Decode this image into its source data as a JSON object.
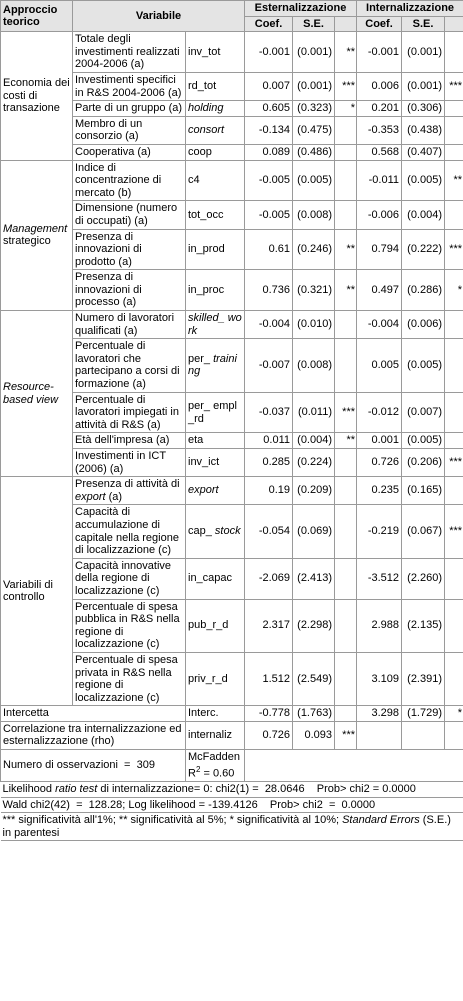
{
  "header": {
    "approach": "Approccio teorico",
    "variable": "Variabile",
    "ext": "Esternalizzazione",
    "int": "Internalizzazione",
    "coef": "Coef.",
    "se": "S.E.",
    "coef2": "Coef.",
    "se2": "S.E."
  },
  "groups": [
    {
      "label": [
        "Economia dei costi di transazione"
      ],
      "rows": [
        {
          "desc": [
            "Totale degli investimenti realizzati 2004-2006 (a)"
          ],
          "var": [
            "inv_tot"
          ],
          "ext_coef": "-0.001",
          "ext_se": "(0.001)",
          "ext_sig": "**",
          "int_coef": "-0.001",
          "int_se": "(0.001)"
        },
        {
          "desc": [
            "Investimenti specifici in R&S 2004-2006 (a)"
          ],
          "var": [
            "rd_tot"
          ],
          "ext_coef": "0.007",
          "ext_se": "(0.001)",
          "ext_sig": "***",
          "int_coef": "0.006",
          "int_se": "(0.001)",
          "int_sig": "***"
        },
        {
          "desc": [
            "Parte di un gruppo (a)"
          ],
          "var": [
            {
              "text": "holding",
              "italic": true
            }
          ],
          "ext_coef": "0.605",
          "ext_se": "(0.323)",
          "ext_sig": "*",
          "int_coef": "0.201",
          "int_se": "(0.306)"
        },
        {
          "desc": [
            "Membro di un consorzio (a)"
          ],
          "var": [
            {
              "text": "consort",
              "italic": true
            }
          ],
          "ext_coef": "-0.134",
          "ext_se": "(0.475)",
          "int_coef": "-0.353",
          "int_se": "(0.438)"
        },
        {
          "desc": [
            "Cooperativa (a)"
          ],
          "var": [
            "coop"
          ],
          "ext_coef": "0.089",
          "ext_se": "(0.486)",
          "int_coef": "0.568",
          "int_se": "(0.407)"
        }
      ]
    },
    {
      "label": [
        {
          "text": "Management",
          "italic": true
        },
        " strategico"
      ],
      "rows": [
        {
          "desc": [
            "Indice di concentrazione di mercato (b)"
          ],
          "var": [
            "c4"
          ],
          "ext_coef": "-0.005",
          "ext_se": "(0.005)",
          "int_coef": "-0.011",
          "int_se": "(0.005)",
          "int_sig": "**"
        },
        {
          "desc": [
            "Dimensione (numero di occupati) (a)"
          ],
          "var": [
            "tot_occ"
          ],
          "ext_coef": "-0.005",
          "ext_se": "(0.008)",
          "int_coef": "-0.006",
          "int_se": "(0.004)"
        },
        {
          "desc": [
            "Presenza di innovazioni di prodotto (a)"
          ],
          "var": [
            "in_prod"
          ],
          "ext_coef": "0.61",
          "ext_se": "(0.246)",
          "ext_sig": "**",
          "int_coef": "0.794",
          "int_se": "(0.222)",
          "int_sig": "***"
        },
        {
          "desc": [
            "Presenza di innovazioni di processo (a)"
          ],
          "var": [
            "in_proc"
          ],
          "ext_coef": "0.736",
          "ext_se": "(0.321)",
          "ext_sig": "**",
          "int_coef": "0.497",
          "int_se": "(0.286)",
          "int_sig": "*"
        }
      ]
    },
    {
      "label": [
        {
          "text": "Resource-based view",
          "italic": true
        }
      ],
      "rows": [
        {
          "desc": [
            "Numero di lavoratori qualificati (a)"
          ],
          "var": [
            {
              "text": "skilled_ work",
              "italic": true
            }
          ],
          "ext_coef": "-0.004",
          "ext_se": "(0.010)",
          "int_coef": "-0.004",
          "int_se": "(0.006)"
        },
        {
          "desc": [
            "Percentuale di lavoratori che partecipano a corsi di formazione (a)"
          ],
          "var": [
            "per_ ",
            {
              "text": "training",
              "italic": true
            }
          ],
          "ext_coef": "-0.007",
          "ext_se": "(0.008)",
          "int_coef": "0.005",
          "int_se": "(0.005)"
        },
        {
          "desc": [
            "Percentuale di lavoratori impiegati in attività di R&S (a)"
          ],
          "var": [
            "per_ empl_rd"
          ],
          "ext_coef": "-0.037",
          "ext_se": "(0.011)",
          "ext_sig": "***",
          "int_coef": "-0.012",
          "int_se": "(0.007)"
        },
        {
          "desc": [
            "Età dell'impresa (a)"
          ],
          "var": [
            "eta"
          ],
          "ext_coef": "0.011",
          "ext_se": "(0.004)",
          "ext_sig": "**",
          "int_coef": "0.001",
          "int_se": "(0.005)"
        },
        {
          "desc": [
            "Investimenti in ICT (2006) (a)"
          ],
          "var": [
            "inv_ict"
          ],
          "ext_coef": "0.285",
          "ext_se": "(0.224)",
          "int_coef": "0.726",
          "int_se": "(0.206)",
          "int_sig": "***"
        }
      ]
    },
    {
      "label": [
        "Variabili di controllo"
      ],
      "rows": [
        {
          "desc": [
            "Presenza di attività di ",
            {
              "text": "export",
              "italic": true
            },
            " (a)"
          ],
          "var": [
            {
              "text": "export",
              "italic": true
            }
          ],
          "ext_coef": "0.19",
          "ext_se": "(0.209)",
          "int_coef": "0.235",
          "int_se": "(0.165)"
        },
        {
          "desc": [
            "Capacità di accumulazione di capitale nella regione di localizzazione (c)"
          ],
          "var": [
            "cap_ ",
            {
              "text": "stock",
              "italic": true
            }
          ],
          "ext_coef": "-0.054",
          "ext_se": "(0.069)",
          "int_coef": "-0.219",
          "int_se": "(0.067)",
          "int_sig": "***"
        },
        {
          "desc": [
            "Capacità innovative della regione di localizzazione (c)"
          ],
          "var": [
            "in_capac"
          ],
          "ext_coef": "-2.069",
          "ext_se": "(2.413)",
          "int_coef": "-3.512",
          "int_se": "(2.260)"
        },
        {
          "desc": [
            "Percentuale di spesa pubblica in R&S nella regione di localizzazione (c)"
          ],
          "var": [
            "pub_r_d"
          ],
          "ext_coef": "2.317",
          "ext_se": "(2.298)",
          "int_coef": "2.988",
          "int_se": "(2.135)"
        },
        {
          "desc": [
            "Percentuale di spesa privata in R&S nella regione di localizzazione (c)"
          ],
          "var": [
            "priv_r_d"
          ],
          "ext_coef": "1.512",
          "ext_se": "(2.549)",
          "int_coef": "3.109",
          "int_se": "(2.391)"
        }
      ]
    }
  ],
  "extra_rows": [
    {
      "desc": [
        "Intercetta"
      ],
      "var": [
        "Interc."
      ],
      "ext_coef": "-0.778",
      "ext_se": "(1.763)",
      "int_coef": "3.298",
      "int_se": "(1.729)",
      "int_sig": "*"
    },
    {
      "desc": [
        "Correlazione tra internalizzazione ed esternalizzazione (rho)"
      ],
      "var": [
        "internaliz"
      ],
      "ext_coef": "0.726",
      "ext_se": "0.093",
      "ext_sig": "***"
    }
  ],
  "observations": {
    "label": "Numero di osservazioni  =  309",
    "mcfadden": "McFadden R",
    "mcfadden_sup": "2",
    "mcfadden_value": " = 0.60"
  },
  "footnotes": [
    [
      "Likelihood ",
      {
        "text": "ratio test",
        "italic": true
      },
      " di internalizzazione= 0: chi2(1) =  28.0646    Prob> chi2 = 0.0000"
    ],
    [
      "Wald chi2(42)  =  128.28; Log likelihood = -139.4126    Prob> chi2  =  0.0000"
    ],
    [
      "*** significatività all'1%; ** significatività al 5%; * significatività al 10%; ",
      {
        "text": "Standard Errors",
        "italic": true
      },
      " (S.E.) in parentesi"
    ]
  ]
}
